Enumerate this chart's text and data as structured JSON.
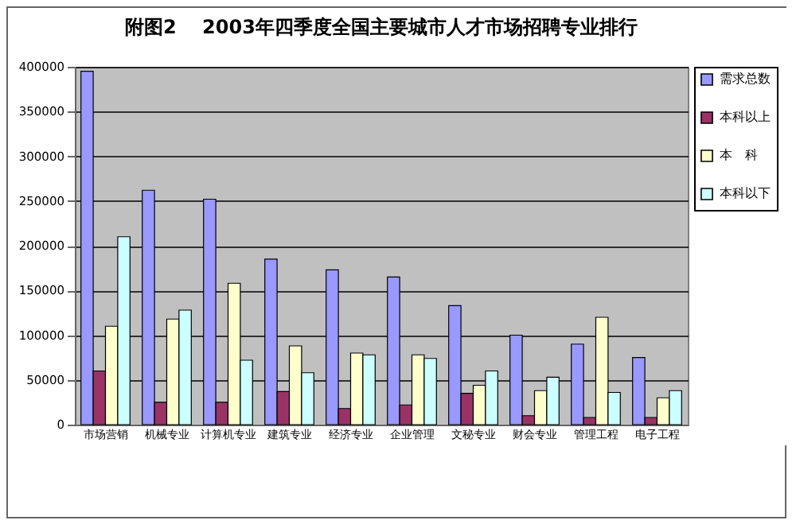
{
  "chart_data": {
    "type": "bar",
    "title": "附图2　 2003年四季度全国主要城市人才市场招聘专业排行",
    "categories": [
      "市场营销",
      "机械专业",
      "计算机专业",
      "建筑专业",
      "经济专业",
      "企业管理",
      "文秘专业",
      "财会专业",
      "管理工程",
      "电子工程"
    ],
    "series": [
      {
        "name": "需求总数",
        "color": "#9999ff",
        "values": [
          395000,
          262000,
          252000,
          185000,
          173000,
          165000,
          133000,
          100000,
          90000,
          75000
        ]
      },
      {
        "name": "本科以上",
        "color": "#993366",
        "values": [
          60000,
          25000,
          25000,
          37000,
          18000,
          22000,
          35000,
          10000,
          8000,
          8000
        ]
      },
      {
        "name": "本　科",
        "color": "#ffffcc",
        "values": [
          110000,
          118000,
          158000,
          88000,
          80000,
          78000,
          44000,
          38000,
          120000,
          30000
        ]
      },
      {
        "name": "本科以下",
        "color": "#ccffff",
        "values": [
          210000,
          128000,
          72000,
          58000,
          78000,
          74000,
          60000,
          53000,
          36000,
          38000
        ]
      }
    ],
    "ylim": [
      0,
      400000
    ],
    "yticks": [
      0,
      50000,
      100000,
      150000,
      200000,
      250000,
      300000,
      350000,
      400000
    ],
    "grid": "y",
    "legend": "right"
  }
}
